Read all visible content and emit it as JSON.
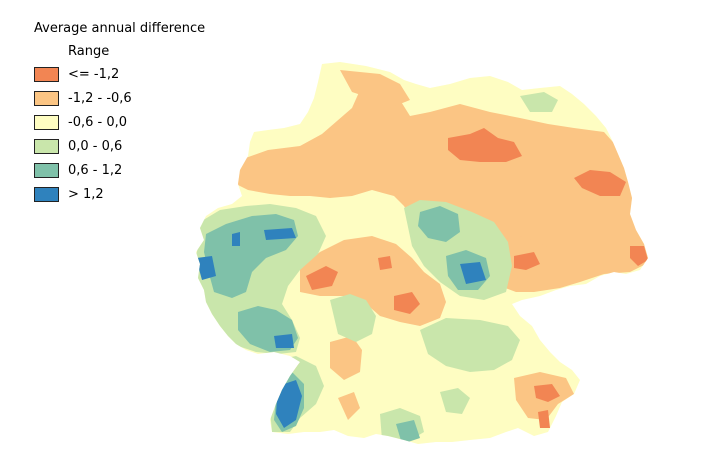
{
  "legend": {
    "title": "Average annual difference",
    "subtitle": "Range",
    "items": [
      {
        "label": "<= -1,2",
        "color": "#f28553"
      },
      {
        "label": "-1,2 - -0,6",
        "color": "#fbc584"
      },
      {
        "label": "-0,6 - 0,0",
        "color": "#fefdc2"
      },
      {
        "label": "0,0 - 0,6",
        "color": "#c9e6ab"
      },
      {
        "label": "0,6 - 1,2",
        "color": "#7fc1a9"
      },
      {
        "label": "> 1,2",
        "color": "#2f82bd"
      }
    ]
  }
}
